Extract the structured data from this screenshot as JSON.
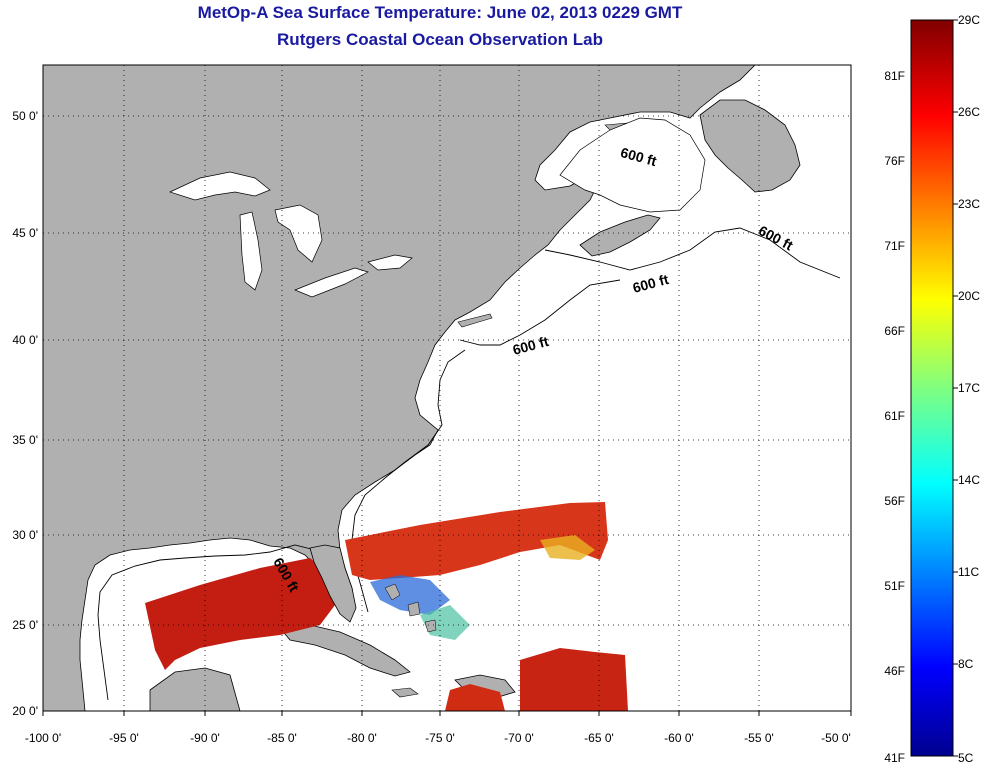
{
  "title": "MetOp-A Sea Surface Temperature:  June 02, 2013 0229 GMT",
  "subtitle": "Rutgers Coastal Ocean Observation Lab",
  "colors": {
    "land": "#b0b0b0",
    "ocean": "#ffffff",
    "title": "#1a1aa0",
    "sst_warm": "#d42a10",
    "sst_hot": "#b01010"
  },
  "map": {
    "lon_range": [
      -100,
      -50
    ],
    "lat_range": [
      20,
      52
    ],
    "lon_ticks": [
      "-100 0'",
      "-95 0'",
      "-90 0'",
      "-85 0'",
      "-80 0'",
      "-75 0'",
      "-70 0'",
      "-65 0'",
      "-60 0'",
      "-55 0'",
      "-50 0'"
    ],
    "lat_ticks": [
      "20 0'",
      "25 0'",
      "30 0'",
      "35 0'",
      "40 0'",
      "45 0'",
      "50 0'"
    ],
    "contour_labels": [
      "600 ft",
      "600 ft",
      "600 ft",
      "600 ft",
      "600 ft"
    ]
  },
  "colorbar": {
    "celsius": [
      "29C",
      "26C",
      "23C",
      "20C",
      "17C",
      "14C",
      "11C",
      "8C",
      "5C"
    ],
    "fahrenheit": [
      "81F",
      "76F",
      "71F",
      "66F",
      "61F",
      "56F",
      "51F",
      "46F",
      "41F"
    ]
  }
}
